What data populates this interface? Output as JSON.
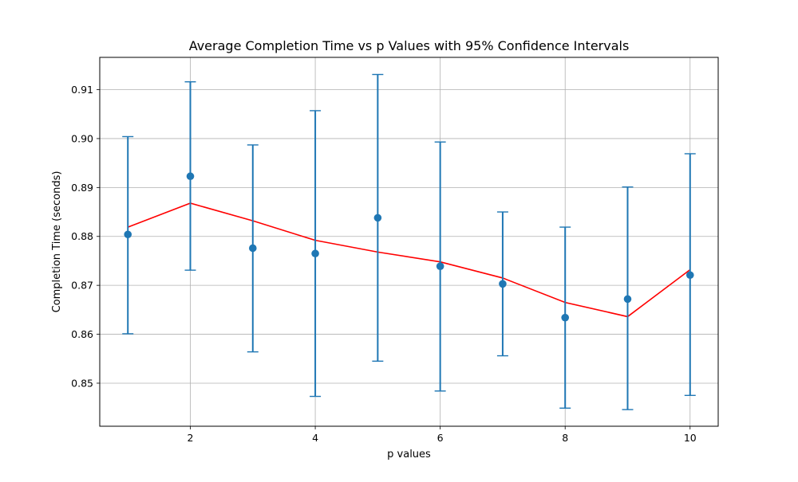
{
  "chart_data": {
    "type": "scatter",
    "title": "Average Completion Time vs p Values with 95% Confidence Intervals",
    "xlabel": "p values",
    "ylabel": "Completion Time (seconds)",
    "xlim": [
      0.55,
      10.45
    ],
    "ylim": [
      0.8412,
      0.9166
    ],
    "x_ticks": [
      2,
      4,
      6,
      8,
      10
    ],
    "x_tick_labels": [
      "2",
      "4",
      "6",
      "8",
      "10"
    ],
    "y_ticks": [
      0.85,
      0.86,
      0.87,
      0.88,
      0.89,
      0.9,
      0.91
    ],
    "y_tick_labels": [
      "0.85",
      "0.86",
      "0.87",
      "0.88",
      "0.89",
      "0.90",
      "0.91"
    ],
    "grid": true,
    "series": [
      {
        "kind": "errorbar",
        "color": "#1f77b4",
        "x": [
          1,
          2,
          3,
          4,
          5,
          6,
          7,
          8,
          9,
          10
        ],
        "y": [
          0.8804,
          0.8923,
          0.8776,
          0.8765,
          0.8838,
          0.8739,
          0.8703,
          0.8634,
          0.8672,
          0.8721
        ],
        "lower": [
          0.8601,
          0.8731,
          0.8564,
          0.8473,
          0.8545,
          0.8484,
          0.8556,
          0.8449,
          0.8446,
          0.8475
        ],
        "upper": [
          0.9004,
          0.9116,
          0.8987,
          0.9057,
          0.9131,
          0.8993,
          0.885,
          0.8819,
          0.8901,
          0.8969
        ]
      },
      {
        "kind": "line",
        "color": "#ff0000",
        "x": [
          1,
          2,
          3,
          4,
          5,
          6,
          7,
          8,
          9,
          10
        ],
        "y": [
          0.8819,
          0.8868,
          0.8832,
          0.8792,
          0.8768,
          0.8748,
          0.8715,
          0.8665,
          0.8636,
          0.8732
        ]
      }
    ]
  }
}
